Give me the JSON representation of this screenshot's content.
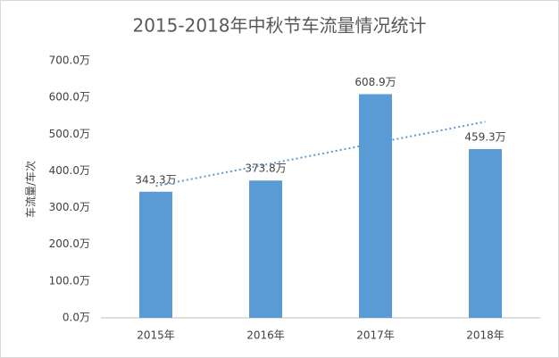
{
  "chart_data": {
    "type": "bar",
    "title": "2015-2018年中秋节车流量情况统计",
    "y_label": "车流量/车次",
    "categories": [
      "2015年",
      "2016年",
      "2017年",
      "2018年"
    ],
    "values": [
      343.3,
      373.8,
      608.9,
      459.3
    ],
    "value_labels": [
      "343.3万",
      "373.8万",
      "608.9万",
      "459.3万"
    ],
    "color": "#5b9bd5",
    "trendline": true,
    "trendline_color": "#5b9bd5",
    "ylim": [
      0,
      700
    ],
    "yticks": [
      {
        "value": 0,
        "label": "0.0万"
      },
      {
        "value": 100,
        "label": "100.0万"
      },
      {
        "value": 200,
        "label": "200.0万"
      },
      {
        "value": 300,
        "label": "300.0万"
      },
      {
        "value": 400,
        "label": "400.0万"
      },
      {
        "value": 500,
        "label": "500.0万"
      },
      {
        "value": 600,
        "label": "600.0万"
      },
      {
        "value": 700,
        "label": "700.0万"
      }
    ],
    "grid": false
  }
}
